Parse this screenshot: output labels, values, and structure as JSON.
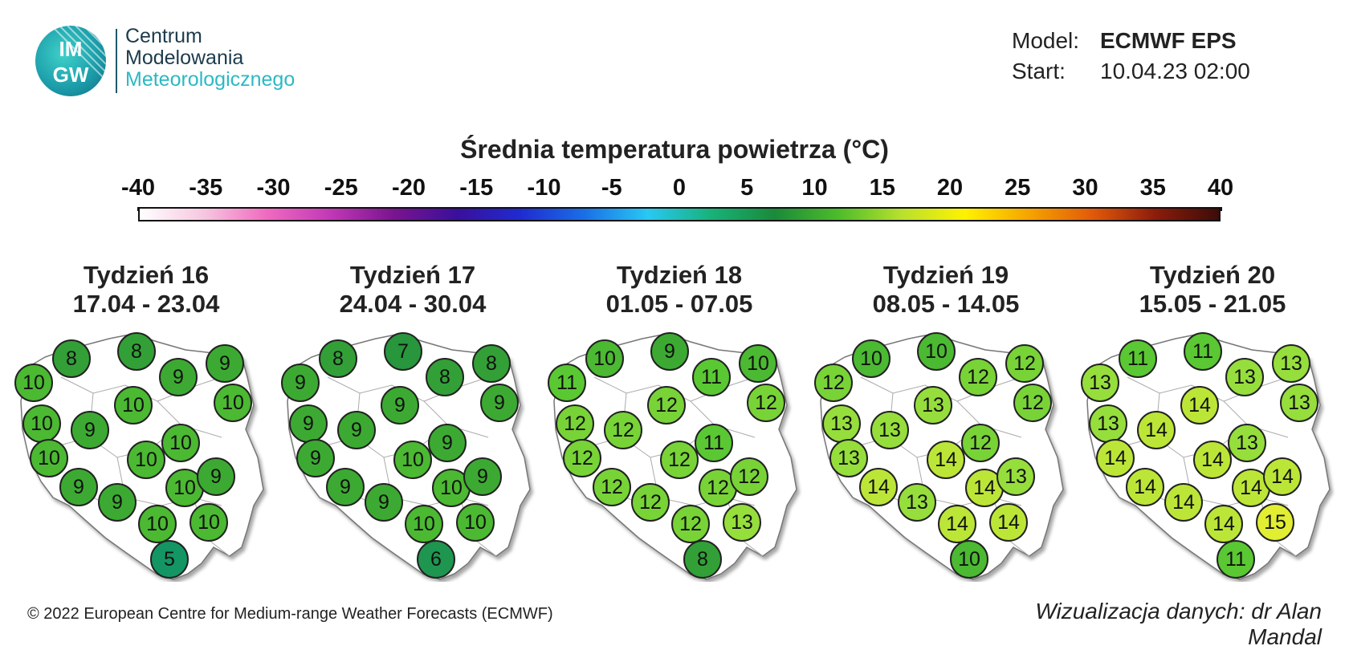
{
  "header": {
    "logo_letters_top": "IM",
    "logo_letters_bottom": "GW",
    "org_line1": "Centrum",
    "org_line2": "Modelowania",
    "org_line3": "Meteorologicznego"
  },
  "model_info": {
    "model_label": "Model:",
    "model_value": "ECMWF EPS",
    "start_label": "Start:",
    "start_value": "10.04.23 02:00"
  },
  "legend": {
    "title": "Średnia temperatura powietrza (°C)",
    "ticks": [
      "-40",
      "-35",
      "-30",
      "-25",
      "-20",
      "-15",
      "-10",
      "-5",
      "0",
      "5",
      "10",
      "15",
      "20",
      "25",
      "30",
      "35",
      "40"
    ],
    "colors": [
      "#ffffff",
      "#f6c8e0",
      "#f06ac0",
      "#c238b6",
      "#7a1490",
      "#3a0f9c",
      "#1f2bd0",
      "#1a6fe6",
      "#28c8f4",
      "#18b27a",
      "#1a8a3a",
      "#4cbc2a",
      "#b8e02e",
      "#fff200",
      "#f6a400",
      "#e25a0a",
      "#8c1c0c",
      "#3c0c08"
    ]
  },
  "weeks": [
    {
      "title": "Tydzień 16",
      "dates": "17.04 - 23.04",
      "values": [
        10,
        8,
        8,
        9,
        9,
        10,
        10,
        9,
        10,
        10,
        10,
        10,
        9,
        10,
        9,
        9,
        10,
        10,
        5
      ]
    },
    {
      "title": "Tydzień 17",
      "dates": "24.04 - 30.04",
      "values": [
        9,
        8,
        7,
        8,
        8,
        9,
        9,
        9,
        9,
        9,
        9,
        10,
        9,
        10,
        9,
        9,
        10,
        10,
        6
      ]
    },
    {
      "title": "Tydzień 18",
      "dates": "01.05 - 07.05",
      "values": [
        11,
        10,
        9,
        11,
        10,
        12,
        12,
        12,
        12,
        11,
        12,
        12,
        12,
        12,
        12,
        12,
        12,
        13,
        8
      ]
    },
    {
      "title": "Tydzień 19",
      "dates": "08.05 - 14.05",
      "values": [
        12,
        10,
        10,
        12,
        12,
        12,
        13,
        13,
        13,
        12,
        13,
        14,
        14,
        14,
        13,
        13,
        14,
        14,
        10
      ]
    },
    {
      "title": "Tydzień 20",
      "dates": "15.05 - 21.05",
      "values": [
        13,
        11,
        11,
        13,
        13,
        13,
        13,
        14,
        14,
        13,
        14,
        14,
        14,
        14,
        14,
        14,
        14,
        15,
        11
      ]
    }
  ],
  "footer": {
    "copyright": "© 2022 European Centre for Medium-range Weather Forecasts (ECMWF)",
    "credit": "Wizualizacja danych: dr Alan Mandal"
  }
}
